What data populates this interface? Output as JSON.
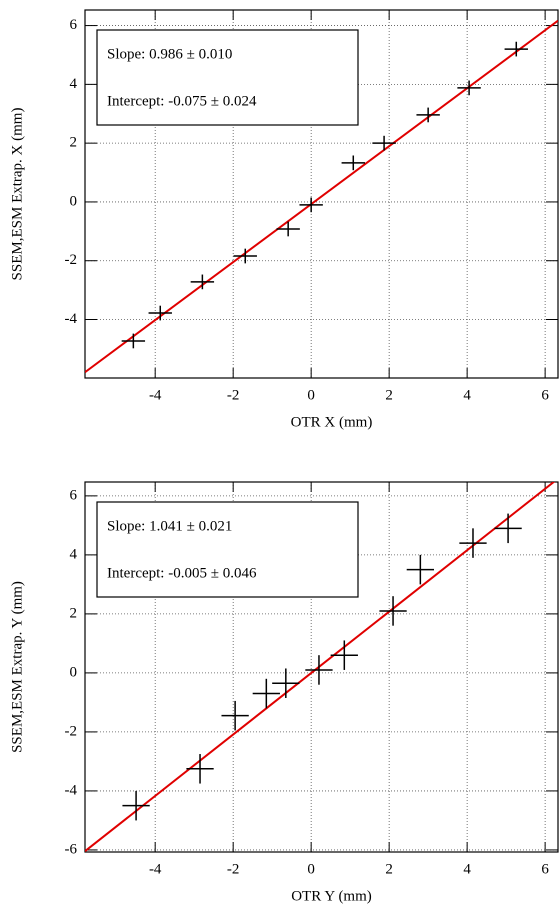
{
  "chart_data": [
    {
      "type": "scatter",
      "xlabel": "OTR X (mm)",
      "ylabel": "SSEM,ESM Extrap. X (mm)",
      "xlim": [
        -5.8,
        6.33
      ],
      "ylim": [
        -5.99,
        6.53
      ],
      "xticks": [
        -4,
        -2,
        0,
        2,
        4,
        6
      ],
      "yticks": [
        -4,
        -2,
        0,
        2,
        4,
        6
      ],
      "grid": true,
      "annotations": [
        "Slope: 0.986 ± 0.010",
        "Intercept: -0.075 ± 0.024"
      ],
      "fit": {
        "slope": 0.986,
        "intercept": -0.075,
        "color": "#e00000"
      },
      "series": [
        {
          "color": "#000000",
          "x": [
            -4.56,
            -3.87,
            -2.79,
            -1.69,
            -0.59,
            0.0,
            1.08,
            1.87,
            3.0,
            4.05,
            5.26
          ],
          "y": [
            -4.73,
            -3.78,
            -2.72,
            -1.84,
            -0.92,
            -0.1,
            1.33,
            2.0,
            2.96,
            3.88,
            5.2
          ],
          "xerr": [
            0.3,
            0.3,
            0.3,
            0.3,
            0.3,
            0.3,
            0.3,
            0.3,
            0.3,
            0.3,
            0.3
          ],
          "yerr": [
            0.25,
            0.25,
            0.25,
            0.25,
            0.25,
            0.25,
            0.25,
            0.25,
            0.25,
            0.25,
            0.25
          ]
        }
      ]
    },
    {
      "type": "scatter",
      "xlabel": "OTR Y (mm)",
      "ylabel": "SSEM,ESM Extrap. Y (mm)",
      "xlim": [
        -5.8,
        6.33
      ],
      "ylim": [
        -6.07,
        6.47
      ],
      "xticks": [
        -4,
        -2,
        0,
        2,
        4,
        6
      ],
      "yticks": [
        -6,
        -4,
        -2,
        0,
        2,
        4,
        6
      ],
      "grid": true,
      "annotations": [
        "Slope: 1.041 ± 0.021",
        "Intercept: -0.005 ± 0.046"
      ],
      "fit": {
        "slope": 1.041,
        "intercept": -0.005,
        "color": "#e00000"
      },
      "series": [
        {
          "color": "#000000",
          "x": [
            -4.49,
            -2.85,
            -1.95,
            -1.15,
            -0.65,
            0.2,
            0.85,
            2.1,
            2.8,
            4.15,
            5.05
          ],
          "y": [
            -4.5,
            -3.25,
            -1.45,
            -0.7,
            -0.35,
            0.1,
            0.6,
            2.1,
            3.5,
            4.4,
            4.9
          ],
          "xerr": [
            0.35,
            0.35,
            0.35,
            0.35,
            0.35,
            0.35,
            0.35,
            0.35,
            0.35,
            0.35,
            0.35
          ],
          "yerr": [
            0.5,
            0.5,
            0.5,
            0.5,
            0.5,
            0.5,
            0.5,
            0.5,
            0.5,
            0.5,
            0.5
          ]
        }
      ]
    }
  ]
}
